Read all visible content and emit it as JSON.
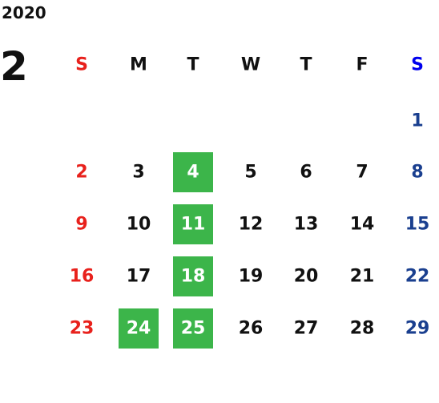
{
  "year": "2020",
  "month": "2",
  "weekdays": [
    "S",
    "M",
    "T",
    "W",
    "T",
    "F",
    "S"
  ],
  "weeks": [
    [
      null,
      null,
      null,
      null,
      null,
      null,
      "1"
    ],
    [
      "2",
      "3",
      {
        "text": "4",
        "highlighted": true
      },
      "5",
      "6",
      "7",
      "8"
    ],
    [
      "9",
      "10",
      {
        "text": "11",
        "highlighted": true
      },
      "12",
      "13",
      "14",
      "15"
    ],
    [
      "16",
      "17",
      {
        "text": "18",
        "highlighted": true
      },
      "19",
      "20",
      "21",
      "22"
    ],
    [
      "23",
      {
        "text": "24",
        "highlighted": true
      },
      {
        "text": "25",
        "highlighted": true
      },
      "26",
      "27",
      "28",
      "29"
    ]
  ]
}
